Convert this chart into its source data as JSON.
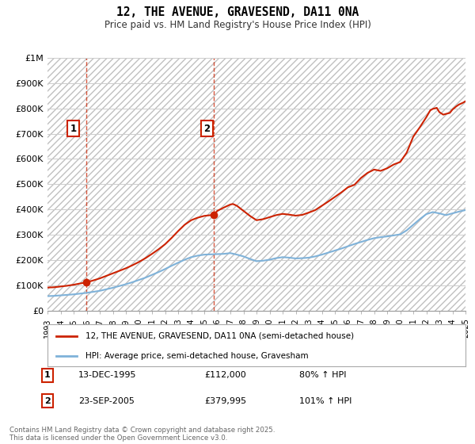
{
  "title": "12, THE AVENUE, GRAVESEND, DA11 0NA",
  "subtitle": "Price paid vs. HM Land Registry's House Price Index (HPI)",
  "ylim": [
    0,
    1000000
  ],
  "yticks": [
    0,
    100000,
    200000,
    300000,
    400000,
    500000,
    600000,
    700000,
    800000,
    900000,
    1000000
  ],
  "ytick_labels": [
    "£0",
    "£100K",
    "£200K",
    "£300K",
    "£400K",
    "£500K",
    "£600K",
    "£700K",
    "£800K",
    "£900K",
    "£1M"
  ],
  "x_start_year": 1993,
  "x_end_year": 2025,
  "bg_color": "#ffffff",
  "grid_color": "#cccccc",
  "red_color": "#cc2200",
  "blue_color": "#7fb2d9",
  "transaction1": {
    "date": "13-DEC-1995",
    "year": 1995.96,
    "price": 112000,
    "label": "1",
    "hpi_pct": "80%"
  },
  "transaction2": {
    "date": "23-SEP-2005",
    "year": 2005.72,
    "price": 379995,
    "label": "2",
    "hpi_pct": "101%"
  },
  "red_line_x": [
    1993.0,
    1993.5,
    1994.0,
    1994.5,
    1995.0,
    1995.5,
    1995.96,
    1996.5,
    1997.0,
    1997.5,
    1998.0,
    1998.5,
    1999.0,
    1999.5,
    2000.0,
    2000.5,
    2001.0,
    2001.5,
    2002.0,
    2002.5,
    2003.0,
    2003.5,
    2004.0,
    2004.5,
    2005.0,
    2005.5,
    2005.72,
    2006.0,
    2006.5,
    2007.0,
    2007.2,
    2007.5,
    2008.0,
    2008.5,
    2009.0,
    2009.5,
    2010.0,
    2010.5,
    2011.0,
    2011.5,
    2012.0,
    2012.5,
    2013.0,
    2013.5,
    2014.0,
    2014.5,
    2015.0,
    2015.5,
    2016.0,
    2016.5,
    2017.0,
    2017.5,
    2018.0,
    2018.5,
    2019.0,
    2019.5,
    2020.0,
    2020.5,
    2021.0,
    2021.5,
    2022.0,
    2022.3,
    2022.5,
    2022.8,
    2023.0,
    2023.3,
    2023.5,
    2023.8,
    2024.0,
    2024.3,
    2024.5,
    2024.8,
    2025.0
  ],
  "red_line_y": [
    92000,
    93000,
    96000,
    99000,
    103000,
    108000,
    112000,
    120000,
    128000,
    138000,
    148000,
    158000,
    168000,
    180000,
    193000,
    208000,
    225000,
    243000,
    263000,
    288000,
    315000,
    340000,
    358000,
    368000,
    375000,
    378000,
    379995,
    395000,
    408000,
    420000,
    422000,
    415000,
    395000,
    375000,
    358000,
    362000,
    370000,
    378000,
    383000,
    380000,
    376000,
    379000,
    388000,
    398000,
    415000,
    432000,
    450000,
    468000,
    488000,
    498000,
    525000,
    545000,
    558000,
    553000,
    563000,
    578000,
    588000,
    625000,
    688000,
    725000,
    765000,
    792000,
    798000,
    802000,
    785000,
    775000,
    778000,
    782000,
    795000,
    808000,
    815000,
    822000,
    828000
  ],
  "blue_line_x": [
    1993.0,
    1993.5,
    1994.0,
    1994.5,
    1995.0,
    1995.5,
    1996.0,
    1996.5,
    1997.0,
    1997.5,
    1998.0,
    1998.5,
    1999.0,
    1999.5,
    2000.0,
    2000.5,
    2001.0,
    2001.5,
    2002.0,
    2002.5,
    2003.0,
    2003.5,
    2004.0,
    2004.5,
    2005.0,
    2005.5,
    2006.0,
    2006.5,
    2007.0,
    2007.5,
    2008.0,
    2008.5,
    2009.0,
    2009.5,
    2010.0,
    2010.5,
    2011.0,
    2011.5,
    2012.0,
    2012.5,
    2013.0,
    2013.5,
    2014.0,
    2014.5,
    2015.0,
    2015.5,
    2016.0,
    2016.5,
    2017.0,
    2017.5,
    2018.0,
    2018.5,
    2019.0,
    2019.5,
    2020.0,
    2020.5,
    2021.0,
    2021.5,
    2022.0,
    2022.5,
    2023.0,
    2023.5,
    2024.0,
    2024.5,
    2025.0
  ],
  "blue_line_y": [
    58000,
    59000,
    61000,
    63000,
    65000,
    68000,
    71000,
    75000,
    79000,
    85000,
    91000,
    98000,
    105000,
    113000,
    122000,
    131000,
    142000,
    153000,
    165000,
    178000,
    190000,
    202000,
    212000,
    218000,
    222000,
    223000,
    224000,
    225000,
    228000,
    222000,
    215000,
    205000,
    196000,
    198000,
    202000,
    208000,
    212000,
    210000,
    207000,
    208000,
    210000,
    215000,
    222000,
    230000,
    238000,
    246000,
    255000,
    264000,
    272000,
    280000,
    287000,
    291000,
    294000,
    298000,
    302000,
    318000,
    340000,
    362000,
    382000,
    390000,
    385000,
    378000,
    385000,
    392000,
    398000
  ],
  "dashed_vline1": 1995.96,
  "dashed_vline2": 2005.72,
  "legend_label_red": "12, THE AVENUE, GRAVESEND, DA11 0NA (semi-detached house)",
  "legend_label_blue": "HPI: Average price, semi-detached house, Gravesham",
  "row1_date": "13-DEC-1995",
  "row1_price": "£112,000",
  "row1_hpi": "80% ↑ HPI",
  "row2_date": "23-SEP-2005",
  "row2_price": "£379,995",
  "row2_hpi": "101% ↑ HPI",
  "footnote": "Contains HM Land Registry data © Crown copyright and database right 2025.\nThis data is licensed under the Open Government Licence v3.0."
}
